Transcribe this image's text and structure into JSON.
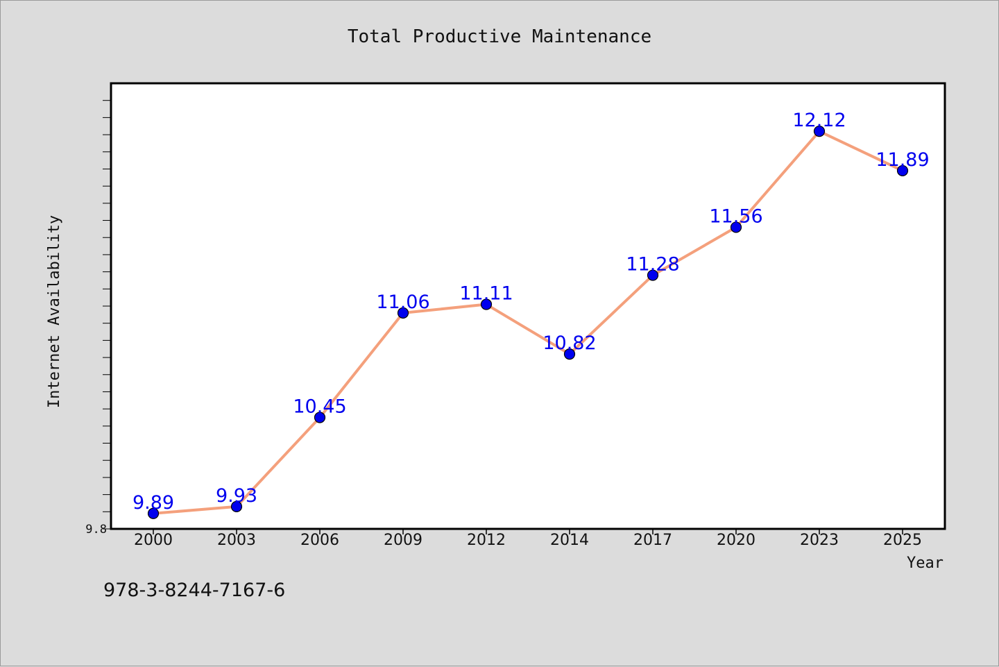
{
  "chart_data": {
    "type": "line",
    "title": "Total Productive Maintenance",
    "xlabel": "Year",
    "ylabel": "Internet Availability",
    "categories": [
      "2000",
      "2003",
      "2006",
      "2009",
      "2012",
      "2014",
      "2017",
      "2020",
      "2023",
      "2025"
    ],
    "series": [
      {
        "values": [
          9.89,
          9.93,
          10.45,
          11.06,
          11.11,
          10.82,
          11.28,
          11.56,
          12.12,
          11.89
        ],
        "labels": [
          "9.89",
          "9.93",
          "10.45",
          "11.06",
          "11.11",
          "10.82",
          "11.28",
          "11.56",
          "12.12",
          "11.89"
        ]
      }
    ],
    "ylim": [
      9.8,
      12.4
    ],
    "yticks_labeled": [
      "9.8"
    ],
    "grid": false,
    "colors": {
      "line": "#f4a07c",
      "marker": "#0000ee",
      "data_label": "#0000ee",
      "background": "#dcdcdc",
      "plot_background": "#ffffff"
    }
  },
  "footer": {
    "isbn": "978-3-8244-7167-6"
  }
}
